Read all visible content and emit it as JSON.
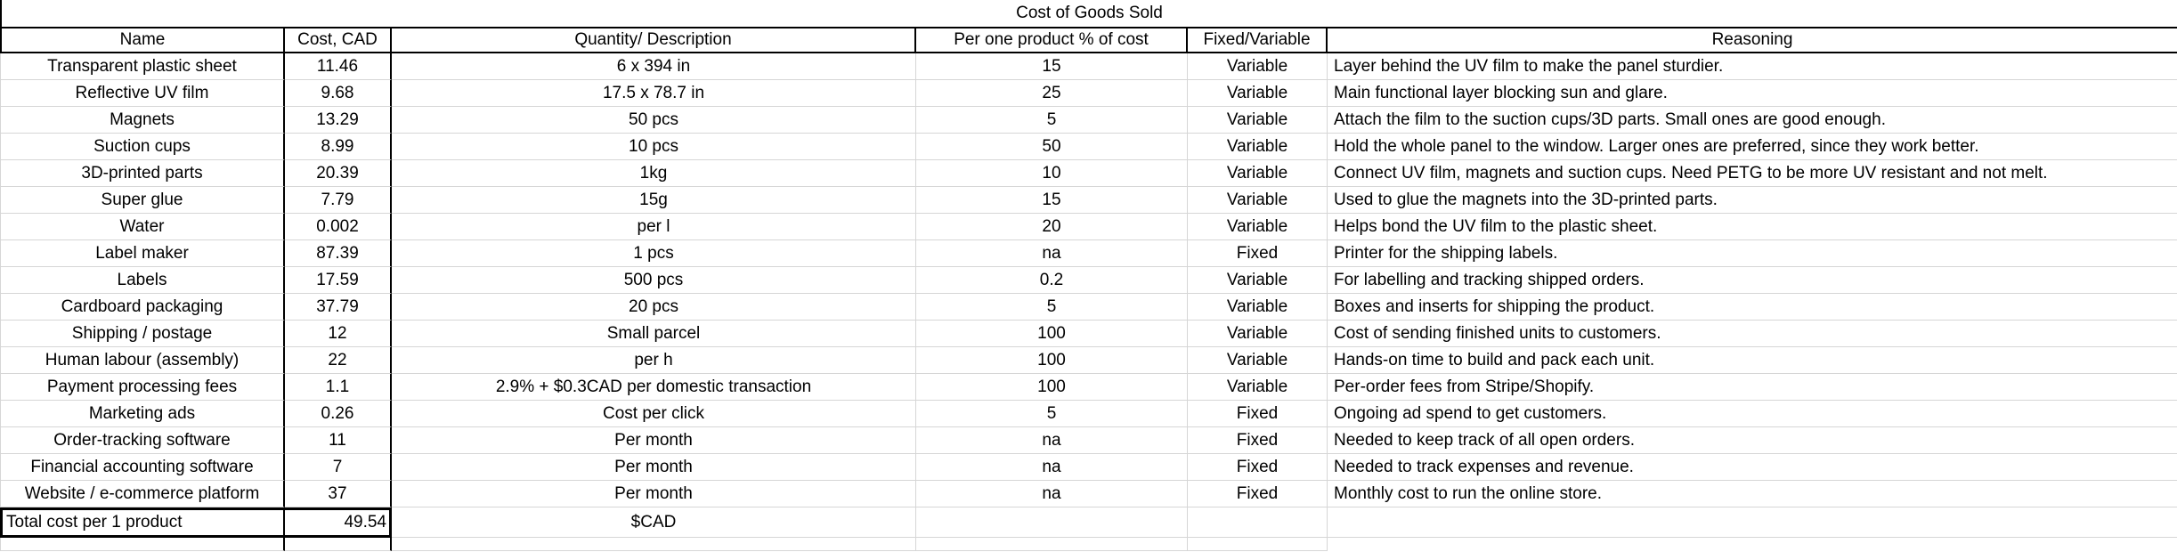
{
  "title": "Cost of Goods Sold",
  "colors": {
    "background": "#ffffff",
    "text": "#000000",
    "border_black": "#000000",
    "gridline_gray": "#d6d6d6"
  },
  "table": {
    "columns": [
      "Name",
      "Cost, CAD",
      "Quantity/ Description",
      "Per one product % of cost",
      "Fixed/Variable",
      "Reasoning"
    ],
    "rows": [
      [
        "Transparent plastic sheet",
        "11.46",
        "6 x 394 in",
        "15",
        "Variable",
        "Layer behind the UV film to make the panel sturdier."
      ],
      [
        "Reflective UV film",
        "9.68",
        "17.5 x 78.7 in",
        "25",
        "Variable",
        "Main functional layer blocking sun and glare."
      ],
      [
        "Magnets",
        "13.29",
        "50 pcs",
        "5",
        "Variable",
        "Attach the film to the suction cups/3D parts. Small ones are good enough."
      ],
      [
        "Suction cups",
        "8.99",
        "10 pcs",
        "50",
        "Variable",
        "Hold the whole panel to the window. Larger ones are preferred, since they work better."
      ],
      [
        "3D-printed parts",
        "20.39",
        "1kg",
        "10",
        "Variable",
        "Connect UV film, magnets and suction cups. Need PETG to be more UV resistant and not melt."
      ],
      [
        "Super glue",
        "7.79",
        "15g",
        "15",
        "Variable",
        "Used to glue the magnets into the 3D-printed parts."
      ],
      [
        "Water",
        "0.002",
        "per l",
        "20",
        "Variable",
        "Helps bond the UV film to the plastic sheet."
      ],
      [
        "Label maker",
        "87.39",
        "1 pcs",
        "na",
        "Fixed",
        "Printer for the shipping labels."
      ],
      [
        "Labels",
        "17.59",
        "500 pcs",
        "0.2",
        "Variable",
        "For labelling and tracking shipped orders."
      ],
      [
        "Cardboard packaging",
        "37.79",
        "20 pcs",
        "5",
        "Variable",
        "Boxes and inserts for shipping the product."
      ],
      [
        "Shipping / postage",
        "12",
        "Small parcel",
        "100",
        "Variable",
        "Cost of sending finished units to customers."
      ],
      [
        "Human labour (assembly)",
        "22",
        "per h",
        "100",
        "Variable",
        "Hands-on time to build and pack each unit."
      ],
      [
        "Payment processing fees",
        "1.1",
        "2.9% + $0.3CAD per domestic transaction",
        "100",
        "Variable",
        "Per-order fees from Stripe/Shopify."
      ],
      [
        "Marketing ads",
        "0.26",
        "Cost per click",
        "5",
        "Fixed",
        "Ongoing ad spend to get customers."
      ],
      [
        "Order-tracking software",
        "11",
        "Per month",
        "na",
        "Fixed",
        "Needed to keep track of all open orders."
      ],
      [
        "Financial accounting software",
        "7",
        "Per month",
        "na",
        "Fixed",
        "Needed to track expenses and revenue."
      ],
      [
        "Website / e-commerce platform",
        "37",
        "Per month",
        "na",
        "Fixed",
        "Monthly cost to run the online store."
      ]
    ],
    "total": {
      "label": "Total cost per 1 product",
      "value": "49.54",
      "currency_note": "$CAD"
    }
  }
}
